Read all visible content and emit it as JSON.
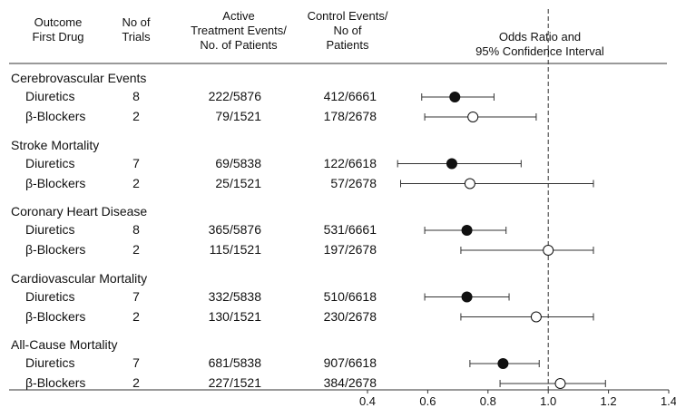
{
  "headers": {
    "outcome": "Outcome\nFirst Drug",
    "trials": "No of\nTrials",
    "active": "Active\nTreatment Events/\nNo. of Patients",
    "control": "Control Events/\nNo of\nPatients",
    "ci": "Odds Ratio and\n95% Confidence Interval"
  },
  "chart_data": {
    "type": "scatter",
    "xlim": [
      0.4,
      1.4
    ],
    "x_ticks": [
      "0.4",
      "0.6",
      "0.8",
      "1.0",
      "1.2",
      "1.4"
    ],
    "reference_line": 1.0,
    "legend": "none",
    "groups": [
      {
        "title": "Cerebrovascular Events",
        "rows": [
          {
            "drug": "Diuretics",
            "trials": "8",
            "active": "222/5876",
            "control": "412/6661",
            "or": 0.69,
            "lo": 0.58,
            "hi": 0.82,
            "filled": true
          },
          {
            "drug": "β-Blockers",
            "trials": "2",
            "active": "79/1521",
            "control": "178/2678",
            "or": 0.75,
            "lo": 0.59,
            "hi": 0.96,
            "filled": false
          }
        ]
      },
      {
        "title": "Stroke Mortality",
        "rows": [
          {
            "drug": "Diuretics",
            "trials": "7",
            "active": "69/5838",
            "control": "122/6618",
            "or": 0.68,
            "lo": 0.5,
            "hi": 0.91,
            "filled": true
          },
          {
            "drug": "β-Blockers",
            "trials": "2",
            "active": "25/1521",
            "control": "57/2678",
            "or": 0.74,
            "lo": 0.51,
            "hi": 1.15,
            "filled": false
          }
        ]
      },
      {
        "title": "Coronary Heart Disease",
        "rows": [
          {
            "drug": "Diuretics",
            "trials": "8",
            "active": "365/5876",
            "control": "531/6661",
            "or": 0.73,
            "lo": 0.59,
            "hi": 0.86,
            "filled": true
          },
          {
            "drug": "β-Blockers",
            "trials": "2",
            "active": "115/1521",
            "control": "197/2678",
            "or": 1.0,
            "lo": 0.71,
            "hi": 1.15,
            "filled": false
          }
        ]
      },
      {
        "title": "Cardiovascular Mortality",
        "rows": [
          {
            "drug": "Diuretics",
            "trials": "7",
            "active": "332/5838",
            "control": "510/6618",
            "or": 0.73,
            "lo": 0.59,
            "hi": 0.87,
            "filled": true
          },
          {
            "drug": "β-Blockers",
            "trials": "2",
            "active": "130/1521",
            "control": "230/2678",
            "or": 0.96,
            "lo": 0.71,
            "hi": 1.15,
            "filled": false
          }
        ]
      },
      {
        "title": "All-Cause Mortality",
        "rows": [
          {
            "drug": "Diuretics",
            "trials": "7",
            "active": "681/5838",
            "control": "907/6618",
            "or": 0.85,
            "lo": 0.74,
            "hi": 0.97,
            "filled": true
          },
          {
            "drug": "β-Blockers",
            "trials": "2",
            "active": "227/1521",
            "control": "384/2678",
            "or": 1.04,
            "lo": 0.84,
            "hi": 1.19,
            "filled": false
          }
        ]
      }
    ]
  }
}
